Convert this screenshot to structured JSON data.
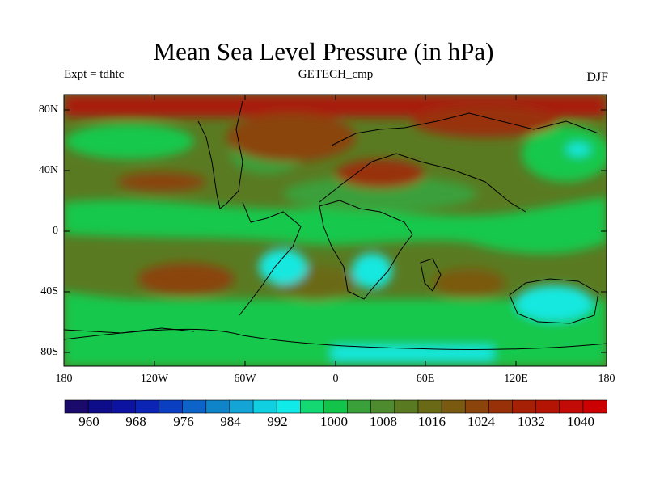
{
  "title": "Mean Sea Level Pressure (in hPa)",
  "left_label": "Expt = tdhtc",
  "center_label": "GETECH_cmp",
  "right_label": "DJF",
  "y_axis": {
    "ticks": [
      "80N",
      "40N",
      "0",
      "40S",
      "80S"
    ]
  },
  "x_axis": {
    "ticks": [
      "180",
      "120W",
      "60W",
      "0",
      "60E",
      "120E",
      "180"
    ]
  },
  "colorbar": {
    "labels": [
      "960",
      "968",
      "976",
      "984",
      "992",
      "1000",
      "1008",
      "1016",
      "1024",
      "1032",
      "1040"
    ],
    "colors": [
      "#1a0a6b",
      "#0d0d8a",
      "#0b13a0",
      "#0b24b4",
      "#0b3fc2",
      "#0d63c8",
      "#0f84c8",
      "#14a4d6",
      "#10cfe0",
      "#10ebea",
      "#14d872",
      "#12c44a",
      "#3aa03a",
      "#4e8a2e",
      "#5a7a22",
      "#6a6a16",
      "#7a5a10",
      "#8a440c",
      "#983008",
      "#a62006",
      "#b41404",
      "#c20a06",
      "#cc0000"
    ]
  },
  "colors": {
    "background": "#ffffff",
    "high_pressure": "#a81c08",
    "mid_high": "#6a6a16",
    "mid": "#4a8a2e",
    "low_green": "#18c84c",
    "low_cyan": "#14e8e0"
  }
}
